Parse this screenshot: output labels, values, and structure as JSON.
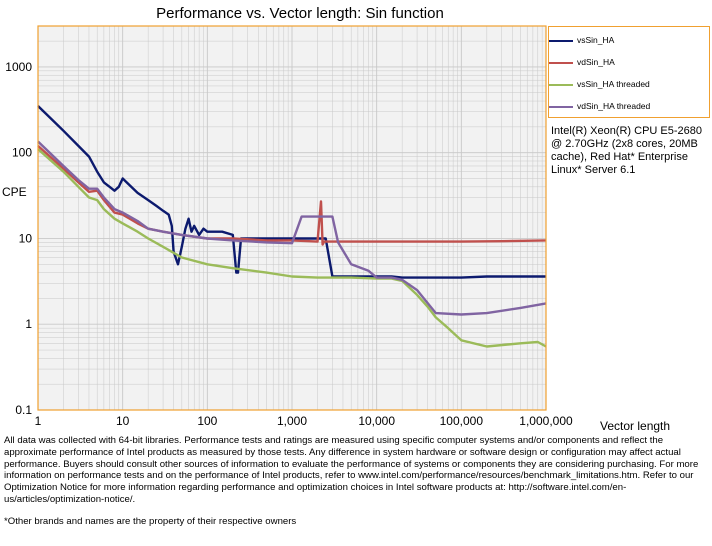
{
  "chart_data": {
    "type": "line",
    "title": "Performance vs. Vector length: Sin function",
    "xlabel": "Vector length",
    "ylabel": "CPE",
    "x_scale": "log",
    "y_scale": "log",
    "xlim": [
      1,
      1000000
    ],
    "ylim": [
      0.1,
      3000
    ],
    "x_ticks": [
      1,
      10,
      100,
      1000,
      10000,
      100000,
      1000000
    ],
    "x_tick_labels": [
      "1",
      "10",
      "100",
      "1,000",
      "10,000",
      "100,000",
      "1,000,000"
    ],
    "y_ticks": [
      0.1,
      1,
      10,
      100,
      1000
    ],
    "y_tick_labels": [
      "0.1",
      "1",
      "10",
      "100",
      "1000"
    ],
    "grid": true,
    "legend_position": "top-right, outside plot",
    "series": [
      {
        "name": "vsSin_HA",
        "color": "#0c1a6e",
        "x": [
          1,
          2,
          3,
          4,
          5,
          6,
          7,
          8,
          9,
          10,
          12,
          15,
          20,
          25,
          30,
          35,
          38,
          40,
          45,
          50,
          55,
          60,
          65,
          70,
          80,
          90,
          100,
          120,
          150,
          200,
          220,
          230,
          250,
          300,
          400,
          500,
          600,
          700,
          800,
          900,
          1000,
          1200,
          1500,
          1800,
          2000,
          2500,
          3000,
          4000,
          5000,
          8000,
          10000,
          15000,
          20000,
          30000,
          50000,
          100000,
          200000,
          500000,
          1000000
        ],
        "y": [
          350,
          180,
          120,
          90,
          60,
          45,
          40,
          36,
          40,
          50,
          42,
          34,
          28,
          24,
          21,
          19,
          14,
          7,
          5,
          8,
          13,
          17,
          12,
          14,
          11,
          13,
          12,
          12,
          12,
          11,
          4,
          4,
          10,
          10,
          10,
          10,
          10,
          10,
          10,
          10,
          10,
          10,
          10,
          10,
          10,
          10,
          3.6,
          3.6,
          3.6,
          3.6,
          3.6,
          3.6,
          3.5,
          3.5,
          3.5,
          3.5,
          3.6,
          3.6,
          3.6
        ]
      },
      {
        "name": "vdSin_HA",
        "color": "#c0504d",
        "x": [
          1,
          2,
          3,
          4,
          5,
          6,
          8,
          10,
          15,
          20,
          30,
          50,
          100,
          200,
          500,
          1000,
          2000,
          2200,
          2300,
          2400,
          2500,
          3000,
          5000,
          10000,
          20000,
          50000,
          100000,
          300000,
          1000000
        ],
        "y": [
          120,
          65,
          45,
          35,
          36,
          28,
          20,
          19,
          15,
          13,
          12,
          11,
          10,
          10,
          9.5,
          9.5,
          9.2,
          27,
          8.5,
          9.2,
          9.2,
          9.2,
          9.2,
          9.2,
          9.2,
          9.2,
          9.2,
          9.3,
          9.5
        ]
      },
      {
        "name": "vsSin_HA threaded",
        "color": "#9bbb59",
        "x": [
          1,
          2,
          3,
          4,
          5,
          6,
          8,
          10,
          15,
          20,
          30,
          50,
          100,
          200,
          500,
          1000,
          2000,
          5000,
          10000,
          15000,
          20000,
          30000,
          40000,
          50000,
          70000,
          100000,
          200000,
          500000,
          800000,
          1000000
        ],
        "y": [
          110,
          60,
          40,
          30,
          28,
          22,
          17,
          15,
          12,
          10,
          8,
          6,
          5,
          4.5,
          4,
          3.6,
          3.5,
          3.5,
          3.4,
          3.4,
          3.2,
          2.2,
          1.6,
          1.2,
          0.9,
          0.65,
          0.55,
          0.6,
          0.62,
          0.55
        ]
      },
      {
        "name": "vdSin_HA threaded",
        "color": "#8064a2",
        "x": [
          1,
          2,
          3,
          4,
          5,
          6,
          8,
          10,
          15,
          20,
          30,
          50,
          100,
          200,
          500,
          1000,
          1300,
          2000,
          3000,
          3500,
          5000,
          8000,
          10000,
          15000,
          20000,
          30000,
          50000,
          100000,
          200000,
          500000,
          1000000
        ],
        "y": [
          135,
          70,
          48,
          38,
          38,
          30,
          22,
          20,
          16,
          13,
          12,
          11,
          10,
          9.5,
          9,
          8.8,
          18,
          18,
          18,
          9,
          5,
          4.2,
          3.5,
          3.5,
          3.3,
          2.5,
          1.35,
          1.3,
          1.35,
          1.55,
          1.75
        ]
      }
    ]
  },
  "cpu_note": "Intel(R) Xeon(R) CPU E5-2680 @ 2.70GHz (2x8 cores, 20MB cache), Red Hat* Enterprise Linux* Server 6.1",
  "disclaimer": "All data was collected with 64-bit libraries. Performance tests and ratings are measured using specific computer systems and/or components and reflect the approximate performance of Intel products as measured by those tests. Any difference in system hardware or software design or configuration may affect actual performance. Buyers should consult other sources of information to evaluate the performance of systems or components they are considering purchasing. For more information on performance tests and on the performance of Intel products, refer to www.intel.com/performance/resources/benchmark_limitations.htm. Refer to our Optimization Notice for more information regarding performance and optimization choices in Intel software products at: http://software.intel.com/en-us/articles/optimization-notice/.",
  "footnote": "*Other brands and names are the property of their respective owners",
  "colors": {
    "frame": "#f0a030",
    "grid": "#c8c8c8",
    "plot_bg": "#f2f2f2"
  }
}
